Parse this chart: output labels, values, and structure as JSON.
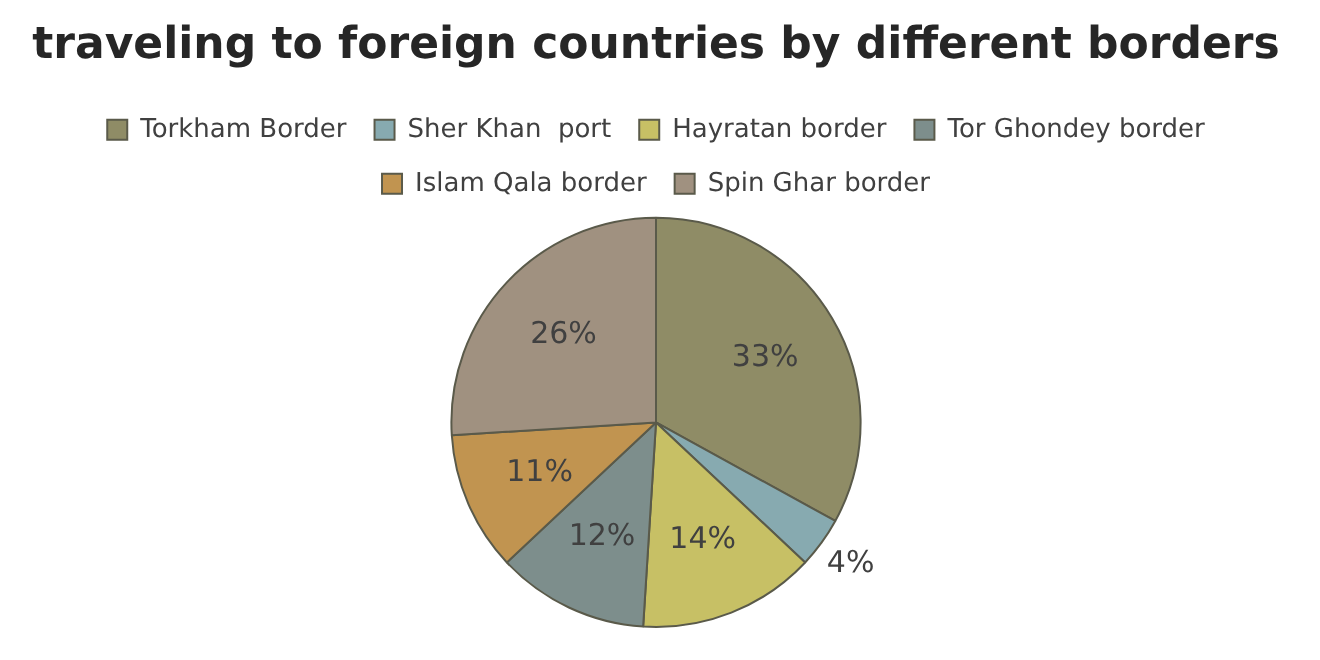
{
  "chart_data": {
    "type": "pie",
    "title": "traveling to foreign countries by different borders",
    "categories": [
      "Torkham Border",
      "Sher Khan  port",
      "Hayratan border",
      "Tor Ghondey border",
      "Islam Qala border",
      "Spin Ghar border"
    ],
    "values": [
      33,
      4,
      14,
      12,
      11,
      26
    ],
    "value_labels": [
      "33%",
      "4%",
      "14%",
      "12%",
      "11%",
      "26%"
    ],
    "colors": [
      "#8f8c66",
      "#87aab0",
      "#c7c065",
      "#7d8e8c",
      "#c19450",
      "#a09180"
    ],
    "legend": "top"
  }
}
